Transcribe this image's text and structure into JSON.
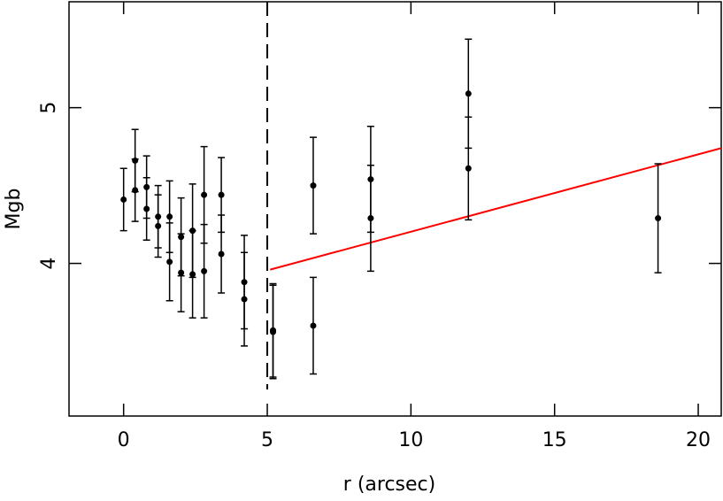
{
  "chart_data": {
    "type": "scatter",
    "xlabel": "r (arcsec)",
    "ylabel": "Mgb",
    "xlim": [
      -1.9,
      20.8
    ],
    "ylim": [
      3.02,
      5.68
    ],
    "xticks": [
      0,
      5,
      10,
      15,
      20
    ],
    "yticks": [
      4,
      5
    ],
    "vline": 5,
    "fit_line": {
      "x": [
        5.1,
        20.8
      ],
      "y": [
        3.96,
        4.74
      ],
      "color": "#ff0000"
    },
    "series": [
      {
        "color": "#000000",
        "x": [
          0,
          0.4,
          0.4,
          0.8,
          0.8,
          1.2,
          1.2,
          1.6,
          1.6,
          2.0,
          2.0,
          2.4,
          2.4,
          2.8,
          2.8,
          3.4,
          3.4,
          4.2,
          4.2,
          5.2,
          5.2,
          6.6,
          6.6,
          8.6,
          8.6,
          12,
          12,
          18.6
        ],
        "values": [
          4.41,
          4.66,
          4.47,
          4.49,
          4.35,
          4.3,
          4.24,
          4.3,
          4.01,
          4.17,
          3.94,
          4.21,
          3.93,
          4.44,
          3.95,
          4.44,
          4.06,
          3.88,
          3.77,
          3.57,
          3.56,
          4.5,
          3.6,
          4.54,
          4.29,
          5.09,
          4.61,
          4.29
        ],
        "errors": [
          0.2,
          0.2,
          0.2,
          0.2,
          0.2,
          0.2,
          0.2,
          0.23,
          0.25,
          0.25,
          0.25,
          0.3,
          0.28,
          0.31,
          0.3,
          0.24,
          0.25,
          0.3,
          0.3,
          0.3,
          0.3,
          0.31,
          0.31,
          0.34,
          0.34,
          0.35,
          0.33,
          0.35
        ]
      }
    ]
  }
}
